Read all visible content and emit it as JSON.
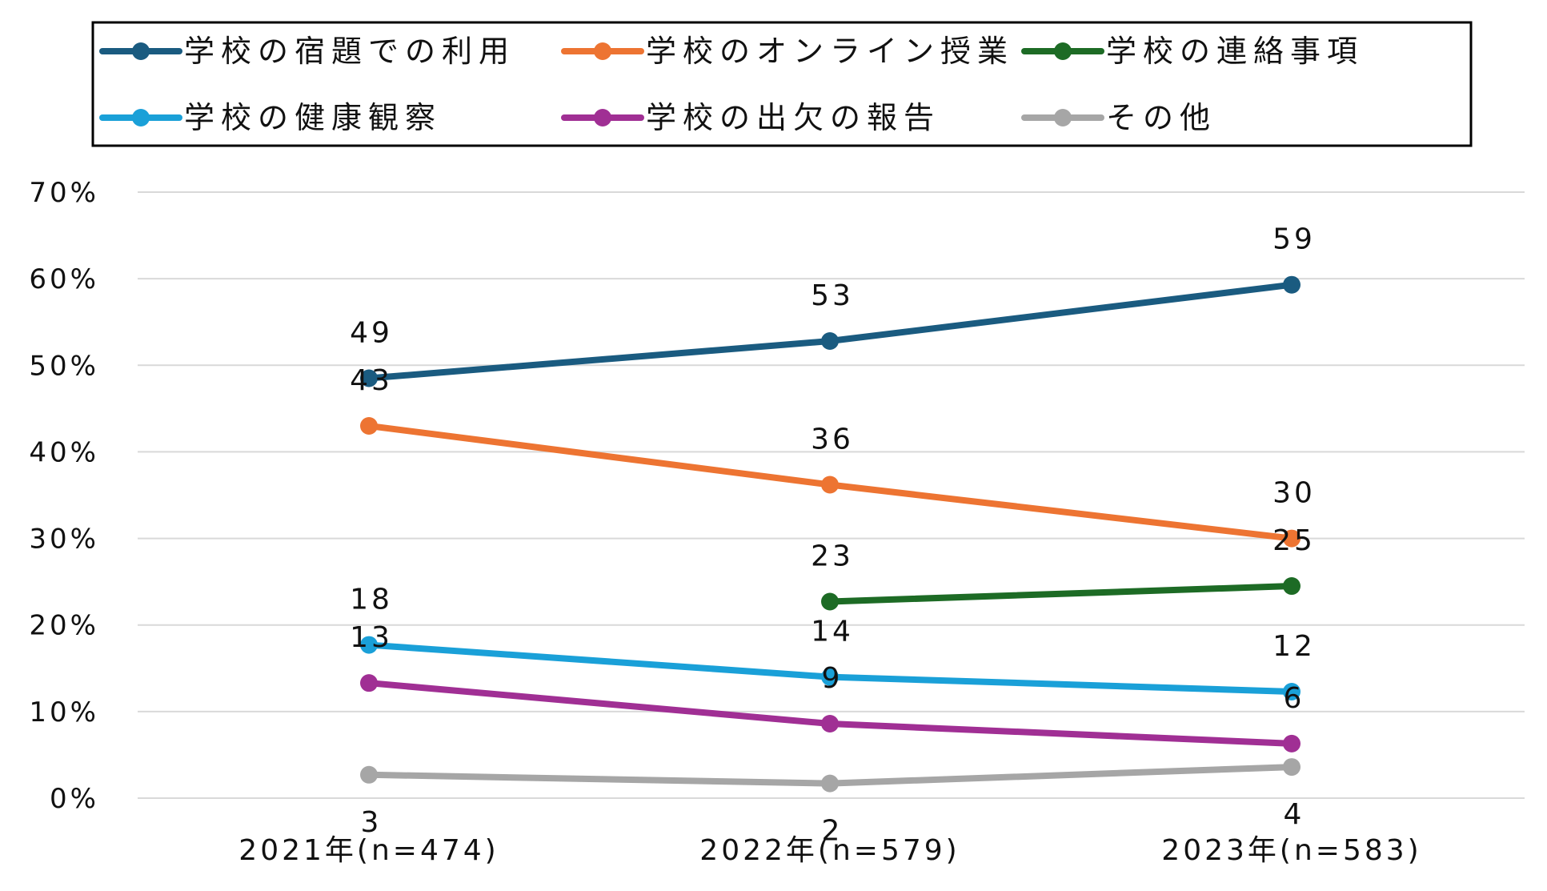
{
  "chart_data": {
    "type": "line",
    "title": "",
    "xlabel": "",
    "ylabel": "",
    "categories": [
      "2021年(n=474)",
      "2022年(n=579)",
      "2023年(n=583)"
    ],
    "ylim": [
      0,
      70
    ],
    "yticks": [
      0,
      10,
      20,
      30,
      40,
      50,
      60,
      70
    ],
    "ytick_labels": [
      "0%",
      "10%",
      "20%",
      "30%",
      "40%",
      "50%",
      "60%",
      "70%"
    ],
    "grid": true,
    "legend_position": "top",
    "series": [
      {
        "name": "学校の宿題での利用",
        "color": "#1a5b80",
        "values": [
          48.5,
          52.8,
          59.3
        ],
        "labels": [
          "49",
          "53",
          "59"
        ]
      },
      {
        "name": "学校のオンライン授業",
        "color": "#ed7432",
        "values": [
          43.0,
          36.2,
          30.0
        ],
        "labels": [
          "43",
          "36",
          "30"
        ]
      },
      {
        "name": "学校の連絡事項",
        "color": "#1d6b25",
        "values": [
          null,
          22.7,
          24.5
        ],
        "labels": [
          null,
          "23",
          "25"
        ]
      },
      {
        "name": "学校の健康観察",
        "color": "#1aa0d8",
        "values": [
          17.7,
          14.0,
          12.3
        ],
        "labels": [
          "18",
          "14",
          "12"
        ]
      },
      {
        "name": "学校の出欠の報告",
        "color": "#a02f94",
        "values": [
          13.3,
          8.6,
          6.3
        ],
        "labels": [
          "13",
          "9",
          "6"
        ]
      },
      {
        "name": "その他",
        "color": "#a6a6a6",
        "values": [
          2.7,
          1.7,
          3.6
        ],
        "labels": [
          "3",
          "2",
          "4"
        ]
      }
    ]
  }
}
